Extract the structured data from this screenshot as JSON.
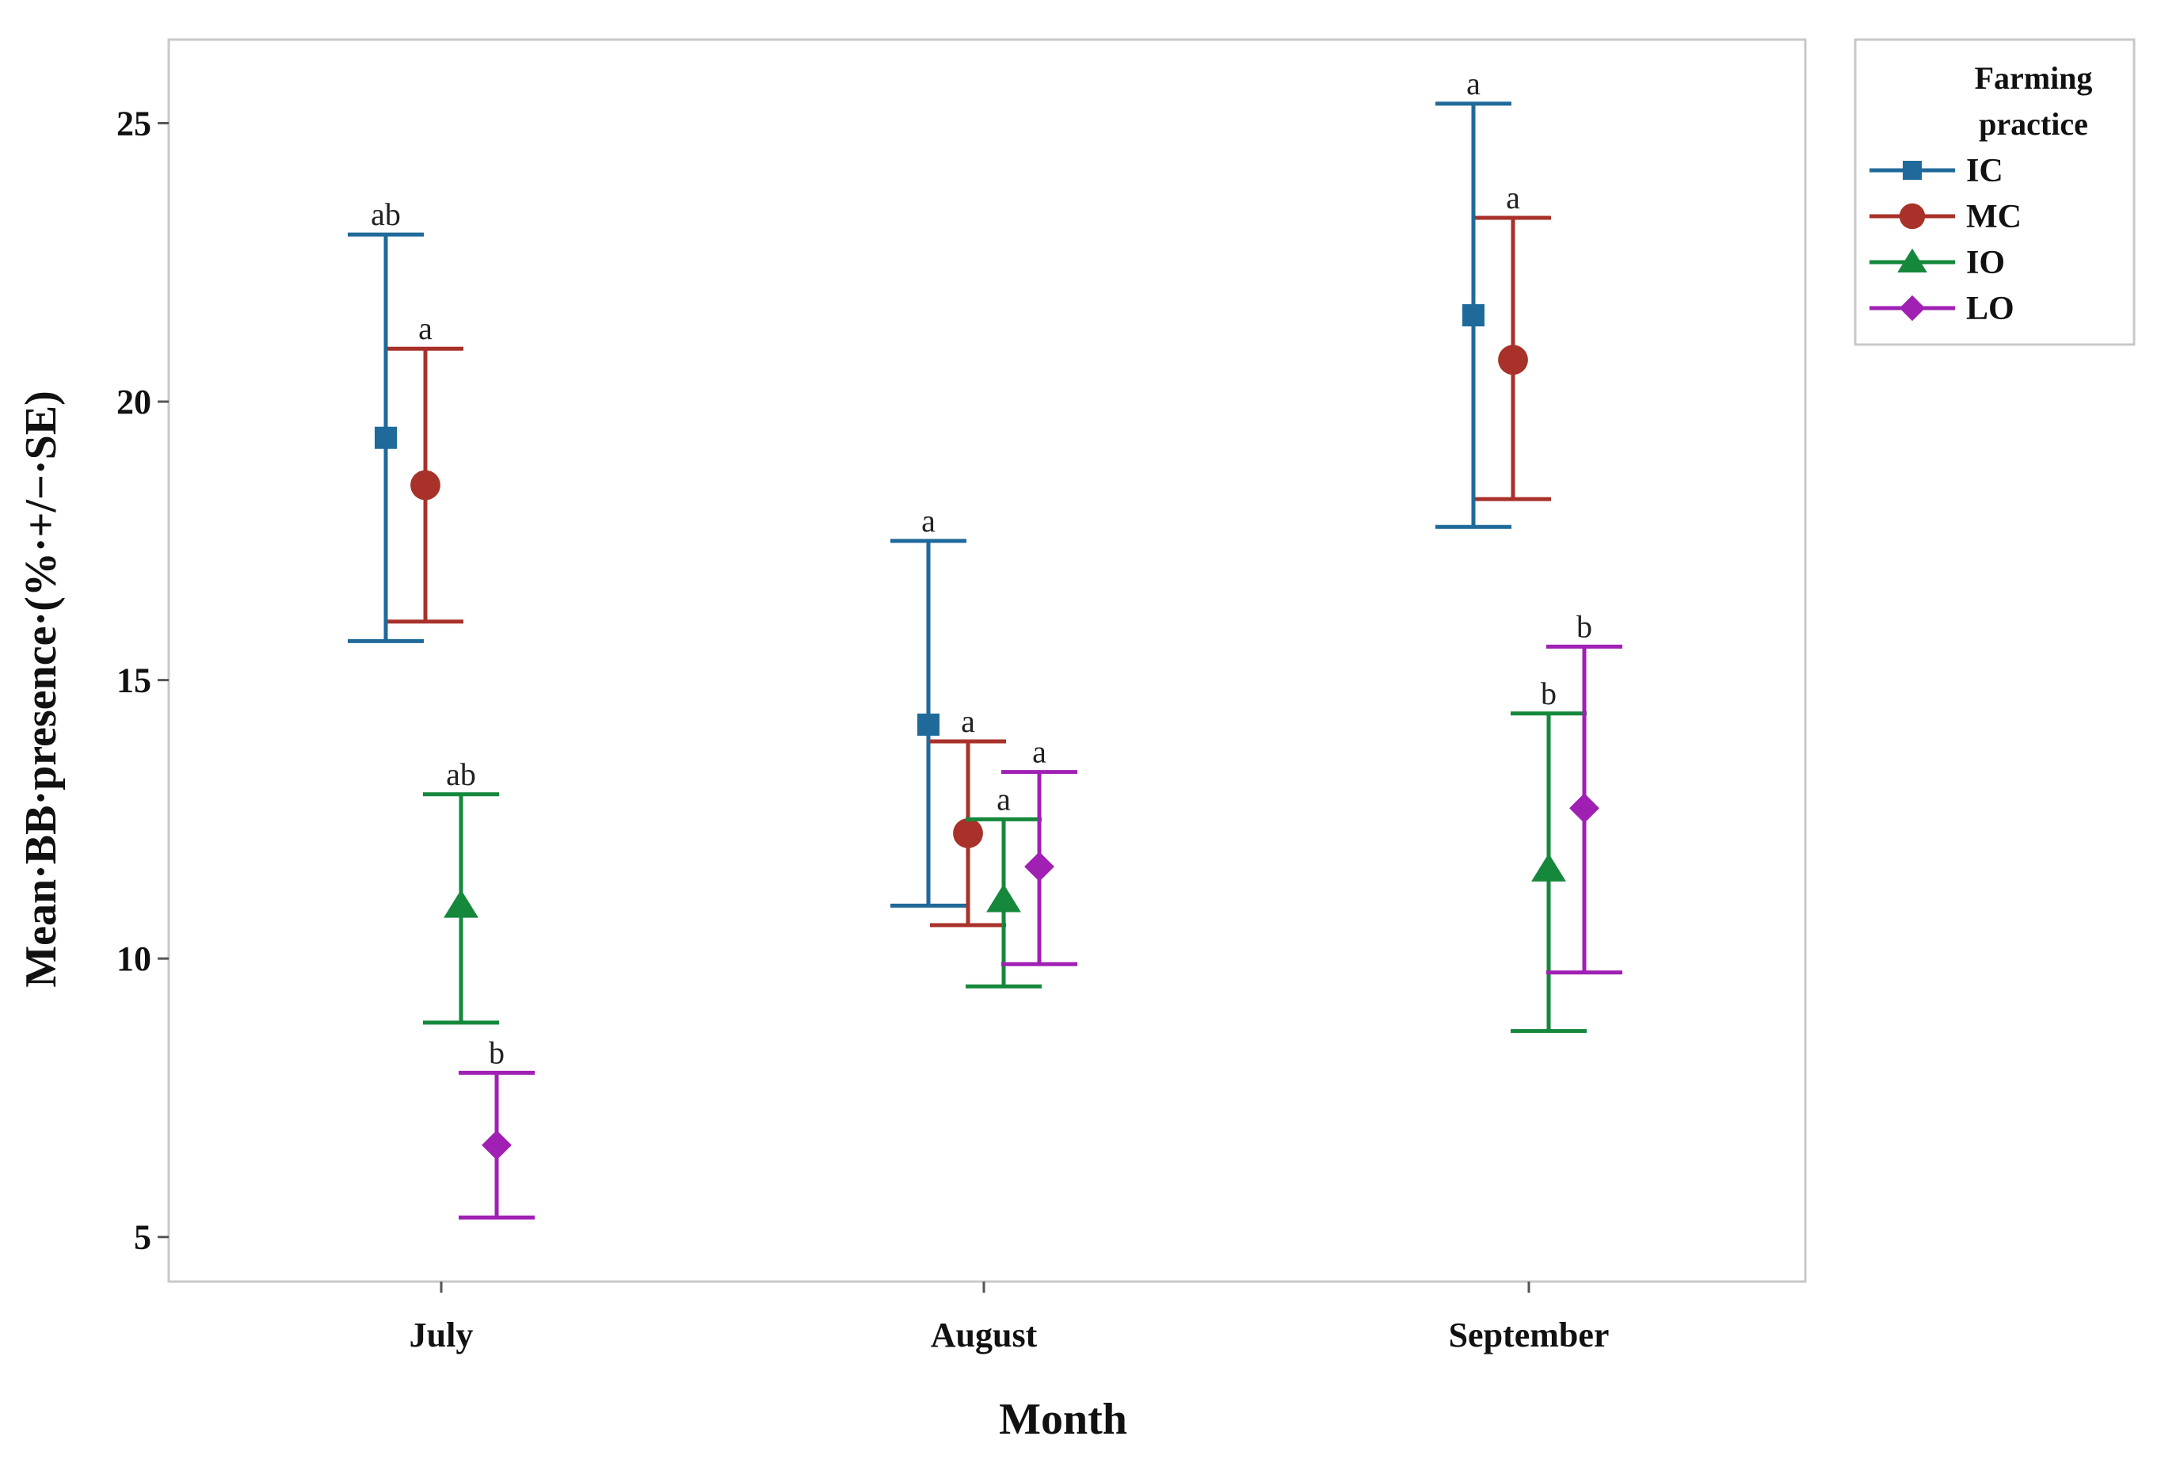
{
  "chart_data": {
    "type": "scatter",
    "subtype": "point-with-error-bars",
    "categories": [
      "July",
      "August",
      "September"
    ],
    "xlabel": "Month",
    "ylabel": "Mean·BB·presence·(%·+/−·SE)",
    "ylim": [
      4.2,
      26.5
    ],
    "yticks": [
      5,
      10,
      15,
      20,
      25
    ],
    "ytick_labels": [
      "5",
      "10",
      "15",
      "20",
      "25"
    ],
    "grid": false,
    "legend": {
      "title_lines": [
        "Farming",
        "practice"
      ],
      "placement": "outside-top-right"
    },
    "series": [
      {
        "name": "IC",
        "color": "#1f6a9a",
        "marker": "square",
        "means": [
          19.35,
          14.2,
          21.55
        ],
        "lower": [
          15.7,
          10.95,
          17.75
        ],
        "upper": [
          23.0,
          17.5,
          25.35
        ],
        "sig_labels": [
          "ab",
          "a",
          "a"
        ]
      },
      {
        "name": "MC",
        "color": "#a8312a",
        "marker": "circle",
        "means": [
          18.5,
          12.25,
          20.75
        ],
        "lower": [
          16.05,
          10.6,
          18.25
        ],
        "upper": [
          20.95,
          13.9,
          23.3
        ],
        "sig_labels": [
          "a",
          "a",
          "a"
        ]
      },
      {
        "name": "IO",
        "color": "#15883c",
        "marker": "triangle",
        "means": [
          10.95,
          11.05,
          11.6
        ],
        "lower": [
          8.85,
          9.5,
          8.7
        ],
        "upper": [
          12.95,
          12.5,
          14.4
        ],
        "sig_labels": [
          "ab",
          "a",
          "b"
        ]
      },
      {
        "name": "LO",
        "color": "#a020b4",
        "marker": "diamond",
        "means": [
          6.65,
          11.65,
          12.7
        ],
        "lower": [
          5.35,
          9.9,
          9.75
        ],
        "upper": [
          7.95,
          13.35,
          15.6
        ],
        "sig_labels": [
          "b",
          "a",
          "b"
        ]
      }
    ]
  }
}
